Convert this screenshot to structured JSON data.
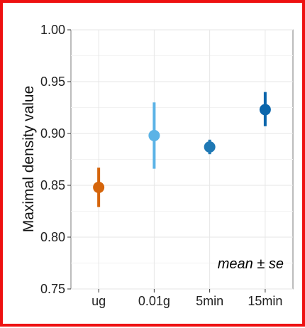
{
  "chart_data": {
    "type": "scatter",
    "title": "",
    "xlabel": "",
    "ylabel": "Maximal density value",
    "annotation": "mean ± se",
    "ylim": [
      0.75,
      1.0
    ],
    "yticks": [
      "0.75",
      "0.80",
      "0.85",
      "0.90",
      "0.95",
      "1.00"
    ],
    "grid": true,
    "legend": "none",
    "categories": [
      "ug",
      "0.01g",
      "5min",
      "15min"
    ],
    "points": [
      {
        "category": "ug",
        "mean": 0.848,
        "low": 0.829,
        "high": 0.867,
        "color": "#D5650B"
      },
      {
        "category": "0.01g",
        "mean": 0.898,
        "low": 0.866,
        "high": 0.93,
        "color": "#5BB3E6"
      },
      {
        "category": "5min",
        "mean": 0.887,
        "low": 0.88,
        "high": 0.894,
        "color": "#1F78B4"
      },
      {
        "category": "15min",
        "mean": 0.923,
        "low": 0.907,
        "high": 0.94,
        "color": "#0B66AC"
      }
    ]
  },
  "frame_color": "#EE1111"
}
